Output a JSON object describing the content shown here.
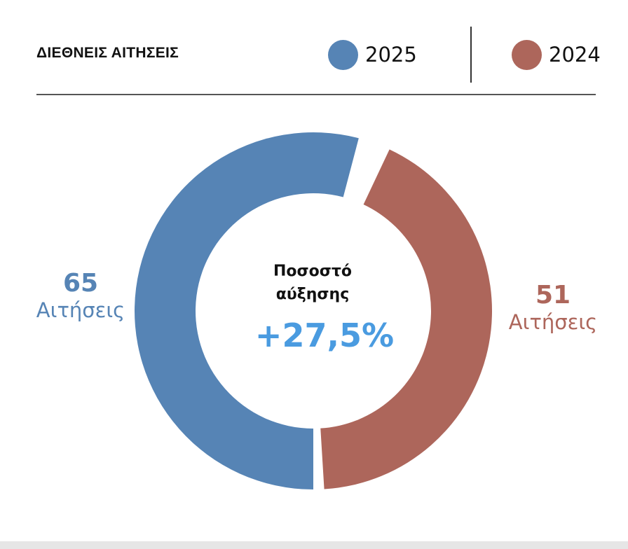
{
  "header": {
    "title": "ΔΙΕΘΝΕΙΣ ΑΙΤΗΣΕΙΣ",
    "legend": [
      {
        "label": "2025",
        "color": "#5684b5"
      },
      {
        "label": "2024",
        "color": "#ad665b"
      }
    ]
  },
  "chart_data": {
    "type": "pie",
    "variant": "donut",
    "series": [
      {
        "name": "2025",
        "value": 65,
        "unit": "Αιτήσεις",
        "color": "#5684b5"
      },
      {
        "name": "2024",
        "value": 51,
        "unit": "Αιτήσεις",
        "color": "#ad665b"
      }
    ],
    "center_caption": "Ποσοστό αύξησης",
    "center_value": "+27,5%",
    "center_value_color": "#4a9be0"
  }
}
